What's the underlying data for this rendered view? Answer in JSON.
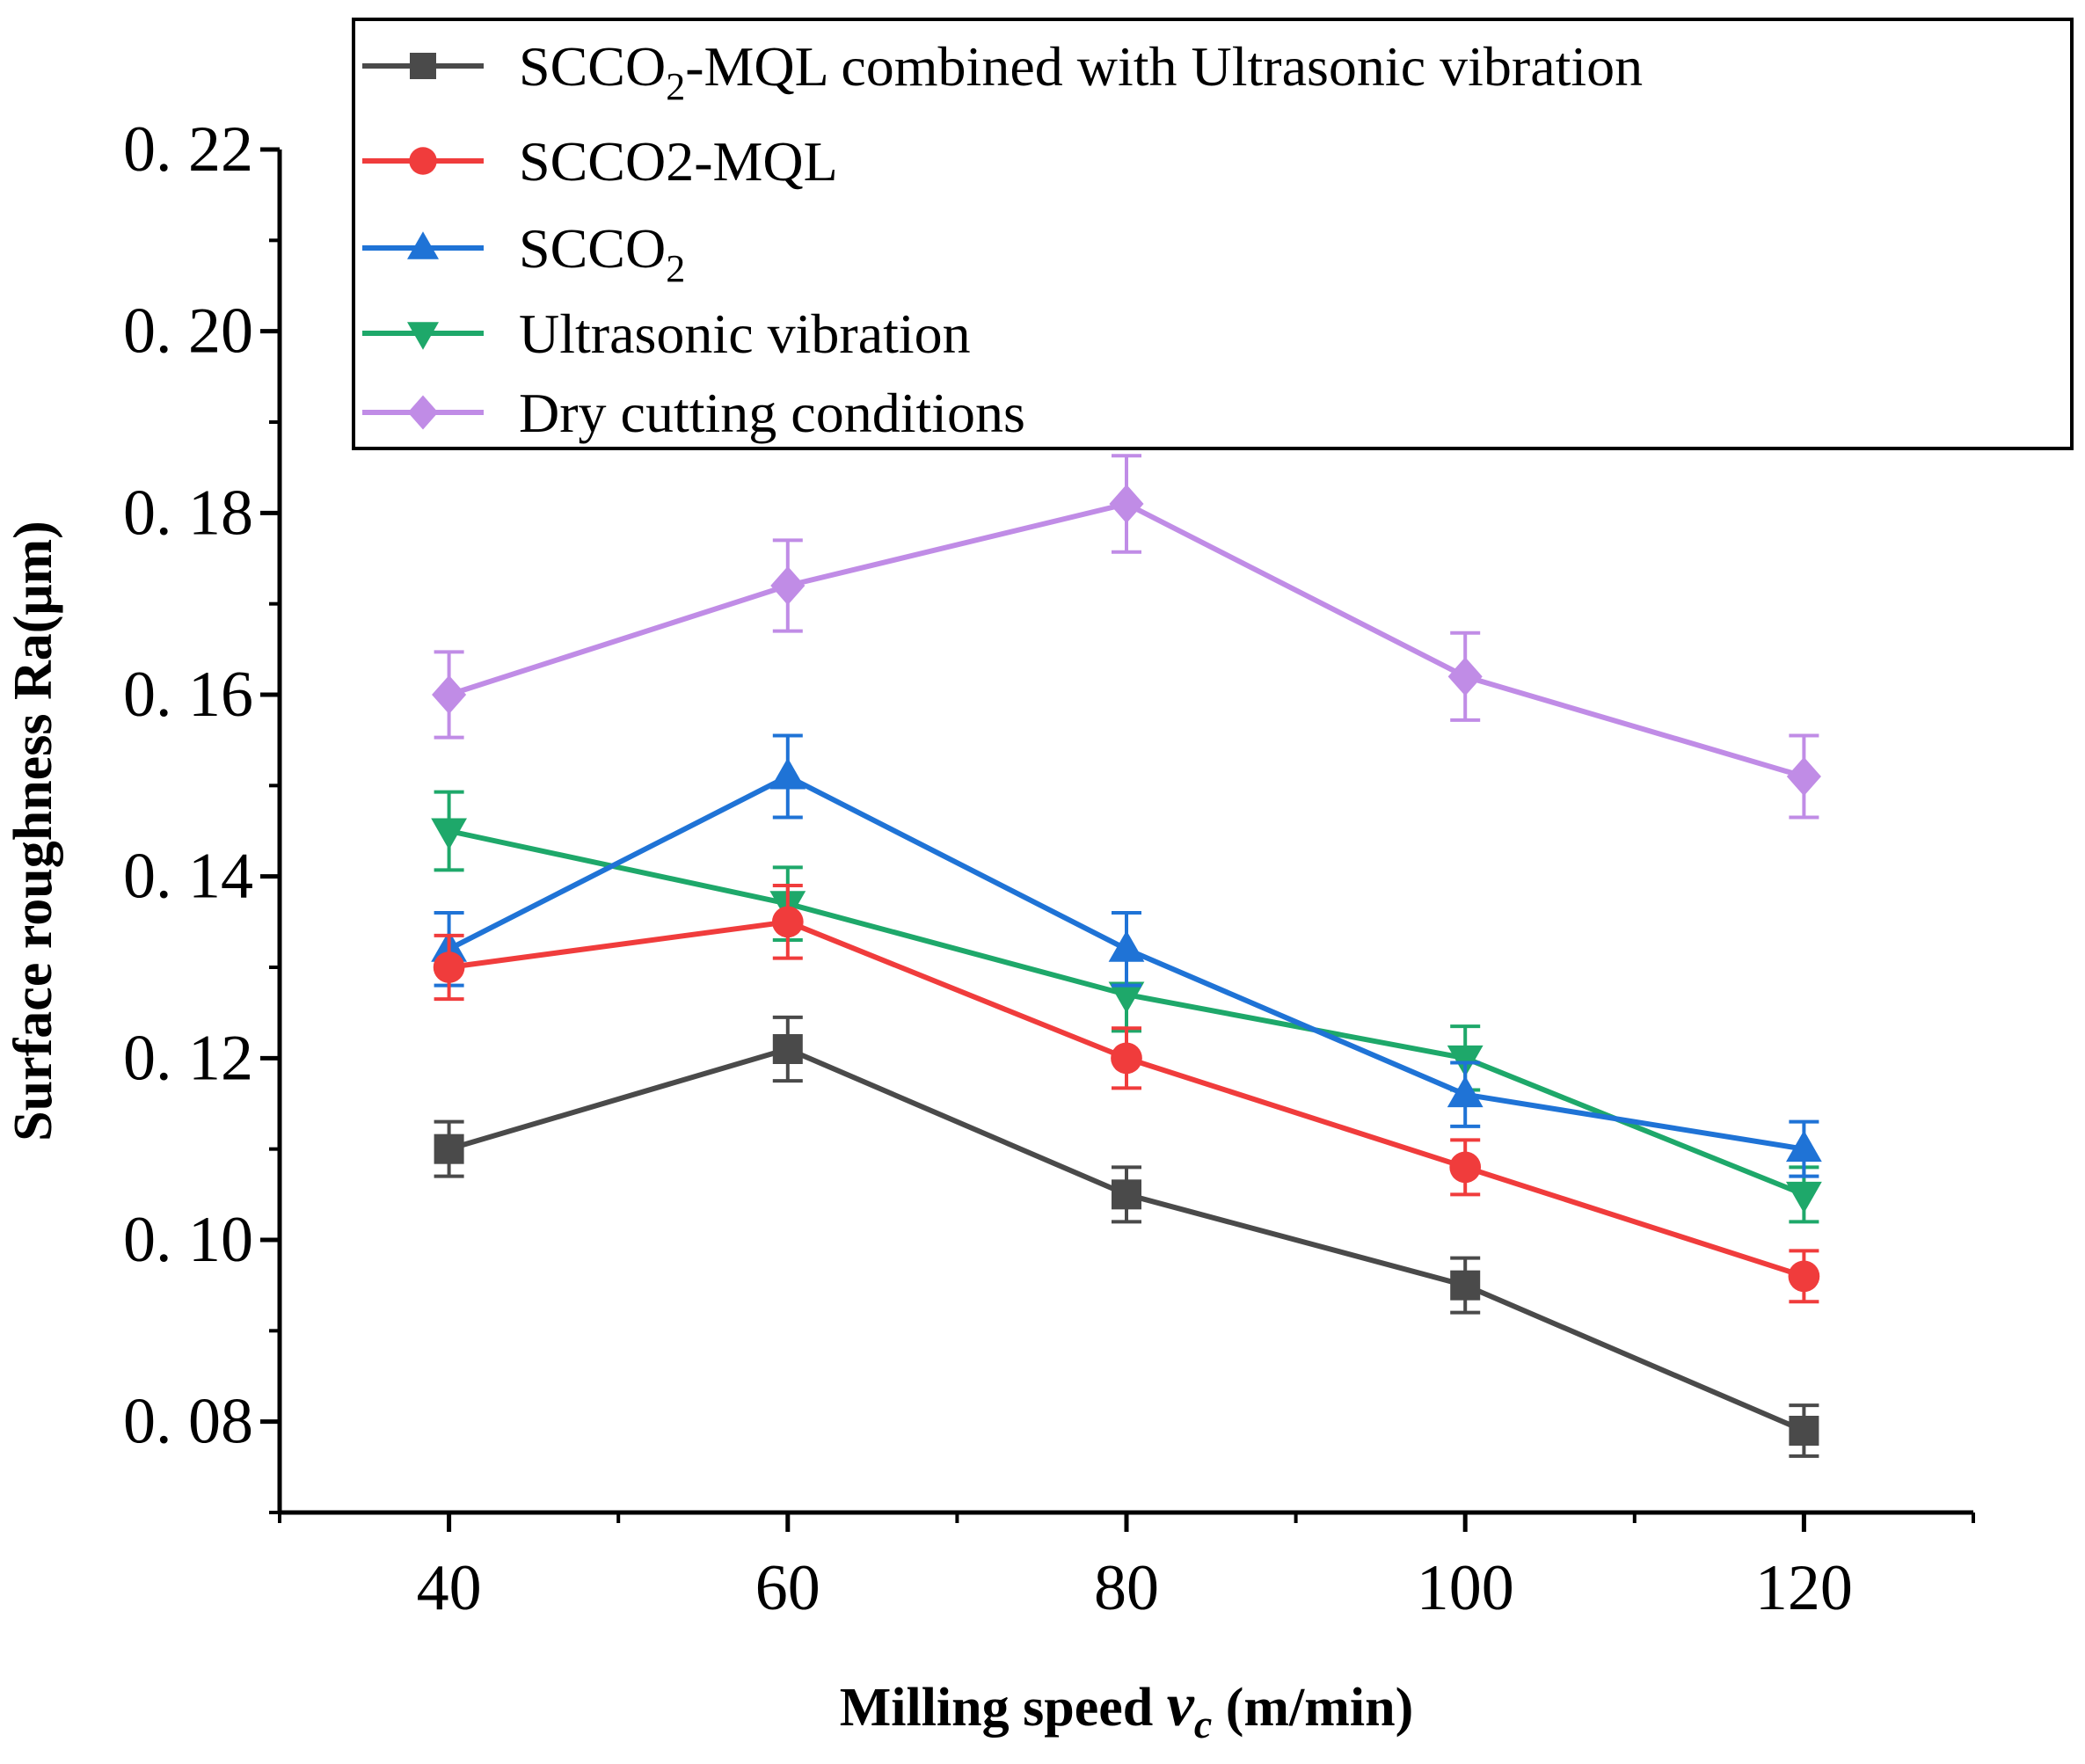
{
  "chart_data": {
    "type": "line",
    "xlabel": "Milling speed",
    "xlabel_var": "v",
    "xlabel_sub": "c",
    "xlabel_unit": "(m/min)",
    "ylabel": "Surface roughness Ra(μm)",
    "x": [
      40,
      60,
      80,
      100,
      120
    ],
    "x_tick_labels": [
      "40",
      "60",
      "80",
      "100",
      "120"
    ],
    "y_tick_labels": [
      "0. 08",
      "0. 10",
      "0. 12",
      "0. 14",
      "0. 16",
      "0. 18",
      "0. 20",
      "0. 22"
    ],
    "y_ticks": [
      0.08,
      0.1,
      0.12,
      0.14,
      0.16,
      0.18,
      0.2,
      0.22
    ],
    "xlim": [
      30,
      130
    ],
    "ylim": [
      0.07,
      0.22
    ],
    "legend_position": "top-right",
    "series": [
      {
        "name": "SCCO2-MQL combined with Ultrasonic vibration",
        "legend_main": "SCCO",
        "legend_sub": "2",
        "legend_rest": "-MQL combined with Ultrasonic vibration",
        "color": "#4a4a4a",
        "marker": "square",
        "values": [
          0.11,
          0.121,
          0.105,
          0.095,
          0.079
        ],
        "errors": [
          0.003,
          0.0035,
          0.003,
          0.003,
          0.0028
        ]
      },
      {
        "name": "SCCO2-MQL",
        "legend_main": "SCCO2-MQL",
        "legend_sub": "",
        "legend_rest": "",
        "color": "#f03c3c",
        "marker": "circle",
        "values": [
          0.13,
          0.135,
          0.12,
          0.108,
          0.096
        ],
        "errors": [
          0.0035,
          0.004,
          0.0033,
          0.003,
          0.0028
        ]
      },
      {
        "name": "SCCO2",
        "legend_main": "SCCO",
        "legend_sub": "2",
        "legend_rest": "",
        "color": "#1f73d6",
        "marker": "triangle-up",
        "values": [
          0.132,
          0.151,
          0.132,
          0.116,
          0.11
        ],
        "errors": [
          0.004,
          0.0045,
          0.004,
          0.0035,
          0.003
        ]
      },
      {
        "name": "Ultrasonic vibration",
        "legend_main": "Ultrasonic vibration",
        "legend_sub": "",
        "legend_rest": "",
        "color": "#1ea86a",
        "marker": "triangle-down",
        "values": [
          0.145,
          0.137,
          0.127,
          0.12,
          0.105
        ],
        "errors": [
          0.0043,
          0.004,
          0.004,
          0.0035,
          0.003
        ]
      },
      {
        "name": "Dry cutting conditions",
        "legend_main": "Dry cutting conditions",
        "legend_sub": "",
        "legend_rest": "",
        "color": "#c08ce6",
        "marker": "diamond",
        "values": [
          0.16,
          0.172,
          0.181,
          0.162,
          0.151
        ],
        "errors": [
          0.0047,
          0.005,
          0.0053,
          0.0048,
          0.0045
        ]
      }
    ]
  }
}
